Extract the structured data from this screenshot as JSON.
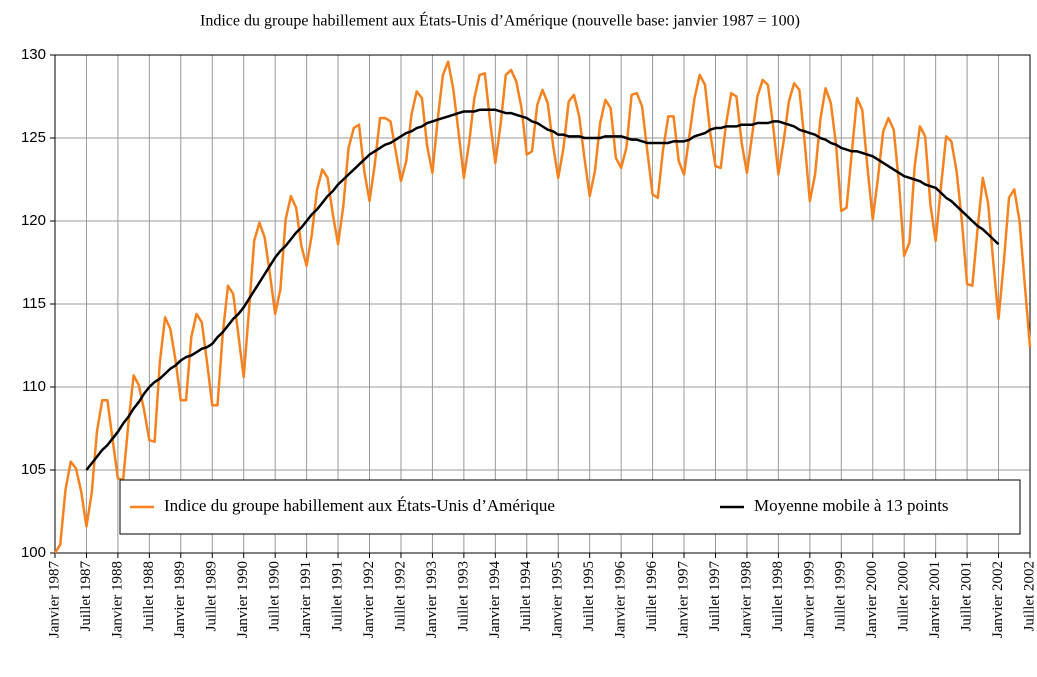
{
  "chart_data": {
    "type": "line",
    "title": "Indice du groupe habillement aux États-Unis d’Amérique (nouvelle base: janvier 1987 = 100)",
    "categories": [
      "Janvier 1987",
      null,
      null,
      null,
      null,
      null,
      "Juillet 1987",
      null,
      null,
      null,
      null,
      null,
      "Janvier 1988",
      null,
      null,
      null,
      null,
      null,
      "Juillet 1988",
      null,
      null,
      null,
      null,
      null,
      "Janvier 1989",
      null,
      null,
      null,
      null,
      null,
      "Juillet 1989",
      null,
      null,
      null,
      null,
      null,
      "Janvier 1990",
      null,
      null,
      null,
      null,
      null,
      "Juillet 1990",
      null,
      null,
      null,
      null,
      null,
      "Janvier 1991",
      null,
      null,
      null,
      null,
      null,
      "Juillet 1991",
      null,
      null,
      null,
      null,
      null,
      "Janvier 1992",
      null,
      null,
      null,
      null,
      null,
      "Juillet 1992",
      null,
      null,
      null,
      null,
      null,
      "Janvier 1993",
      null,
      null,
      null,
      null,
      null,
      "Juillet 1993",
      null,
      null,
      null,
      null,
      null,
      "Janvier 1994",
      null,
      null,
      null,
      null,
      null,
      "Juillet 1994",
      null,
      null,
      null,
      null,
      null,
      "Janvier 1995",
      null,
      null,
      null,
      null,
      null,
      "Juillet 1995",
      null,
      null,
      null,
      null,
      null,
      "Janvier 1996",
      null,
      null,
      null,
      null,
      null,
      "Juillet 1996",
      null,
      null,
      null,
      null,
      null,
      "Janvier 1997",
      null,
      null,
      null,
      null,
      null,
      "Juillet 1997",
      null,
      null,
      null,
      null,
      null,
      "Janvier 1998",
      null,
      null,
      null,
      null,
      null,
      "Juillet 1998",
      null,
      null,
      null,
      null,
      null,
      "Janvier 1999",
      null,
      null,
      null,
      null,
      null,
      "Juillet 1999",
      null,
      null,
      null,
      null,
      null,
      "Janvier 2000",
      null,
      null,
      null,
      null,
      null,
      "Juillet 2000",
      null,
      null,
      null,
      null,
      null,
      "Janvier 2001",
      null,
      null,
      null,
      null,
      null,
      "Juillet 2001",
      null,
      null,
      null,
      null,
      null,
      "Janvier 2002",
      null,
      null,
      null,
      null,
      null,
      "Juillet 2002"
    ],
    "series": [
      {
        "name": "Indice du groupe habillement aux États-Unis d’Amérique",
        "color": "#f5821f",
        "values": [
          100.0,
          100.5,
          103.8,
          105.5,
          105.1,
          103.7,
          101.6,
          103.6,
          107.3,
          109.2,
          109.2,
          106.8,
          104.5,
          104.4,
          107.8,
          110.7,
          110.1,
          108.6,
          106.8,
          106.7,
          111.5,
          114.2,
          113.5,
          111.6,
          109.2,
          109.2,
          113.0,
          114.4,
          113.9,
          111.5,
          108.9,
          108.9,
          113.2,
          116.1,
          115.6,
          113.1,
          110.6,
          114.6,
          118.8,
          119.9,
          119.0,
          116.8,
          114.4,
          115.9,
          120.1,
          121.5,
          120.8,
          118.5,
          117.3,
          119.2,
          121.9,
          123.1,
          122.6,
          120.4,
          118.6,
          120.9,
          124.4,
          125.6,
          125.8,
          123.0,
          121.2,
          123.4,
          126.2,
          126.2,
          126.0,
          124.2,
          122.4,
          123.6,
          126.4,
          127.8,
          127.4,
          124.5,
          122.9,
          126.1,
          128.8,
          129.6,
          127.9,
          125.3,
          122.6,
          124.7,
          127.4,
          128.8,
          128.9,
          126.0,
          123.5,
          125.8,
          128.8,
          129.1,
          128.4,
          126.8,
          124.0,
          124.2,
          127.0,
          127.9,
          127.1,
          124.6,
          122.6,
          124.4,
          127.2,
          127.6,
          126.3,
          123.8,
          121.5,
          123.0,
          125.9,
          127.3,
          126.8,
          123.8,
          123.2,
          124.4,
          127.6,
          127.7,
          126.9,
          124.2,
          121.6,
          121.4,
          124.3,
          126.3,
          126.3,
          123.6,
          122.8,
          125.1,
          127.4,
          128.8,
          128.2,
          125.3,
          123.3,
          123.2,
          125.8,
          127.7,
          127.5,
          124.7,
          122.9,
          125.2,
          127.5,
          128.5,
          128.2,
          125.7,
          122.8,
          124.8,
          127.2,
          128.3,
          127.9,
          124.8,
          121.2,
          122.8,
          126.1,
          128.0,
          127.1,
          124.6,
          120.6,
          120.8,
          124.1,
          127.4,
          126.7,
          123.2,
          120.1,
          122.6,
          125.4,
          126.2,
          125.5,
          122.3,
          117.9,
          118.7,
          123.3,
          125.7,
          125.1,
          121.0,
          118.8,
          122.0,
          125.1,
          124.8,
          123.0,
          120.0,
          116.2,
          116.1,
          119.5,
          122.6,
          121.1,
          117.5,
          114.1,
          117.5,
          121.4,
          121.9,
          120.0,
          116.2,
          112.4
        ]
      },
      {
        "name": "Moyenne mobile à 13 points",
        "color": "#000000",
        "values": [
          null,
          null,
          null,
          null,
          null,
          null,
          105.0,
          105.4,
          105.8,
          106.2,
          106.5,
          106.9,
          107.3,
          107.8,
          108.2,
          108.7,
          109.1,
          109.6,
          110.0,
          110.3,
          110.5,
          110.8,
          111.1,
          111.3,
          111.6,
          111.8,
          111.9,
          112.1,
          112.3,
          112.4,
          112.6,
          113.0,
          113.3,
          113.7,
          114.1,
          114.4,
          114.8,
          115.3,
          115.8,
          116.3,
          116.8,
          117.3,
          117.8,
          118.2,
          118.5,
          118.9,
          119.3,
          119.6,
          120.0,
          120.4,
          120.7,
          121.1,
          121.5,
          121.8,
          122.2,
          122.5,
          122.8,
          123.1,
          123.4,
          123.7,
          124.0,
          124.2,
          124.4,
          124.6,
          124.7,
          124.9,
          125.1,
          125.3,
          125.4,
          125.6,
          125.7,
          125.9,
          126.0,
          126.1,
          126.2,
          126.3,
          126.4,
          126.5,
          126.6,
          126.6,
          126.6,
          126.7,
          126.7,
          126.7,
          126.7,
          126.6,
          126.5,
          126.5,
          126.4,
          126.3,
          126.2,
          126.0,
          125.9,
          125.7,
          125.5,
          125.4,
          125.2,
          125.2,
          125.1,
          125.1,
          125.1,
          125.0,
          125.0,
          125.0,
          125.0,
          125.1,
          125.1,
          125.1,
          125.1,
          125.0,
          124.9,
          124.9,
          124.8,
          124.7,
          124.7,
          124.7,
          124.7,
          124.7,
          124.8,
          124.8,
          124.8,
          124.9,
          125.1,
          125.2,
          125.3,
          125.5,
          125.6,
          125.6,
          125.7,
          125.7,
          125.7,
          125.8,
          125.8,
          125.8,
          125.9,
          125.9,
          125.9,
          126.0,
          126.0,
          125.9,
          125.8,
          125.7,
          125.5,
          125.4,
          125.3,
          125.2,
          125.0,
          124.9,
          124.7,
          124.6,
          124.4,
          124.3,
          124.2,
          124.2,
          124.1,
          124.0,
          123.9,
          123.7,
          123.5,
          123.3,
          123.1,
          122.9,
          122.7,
          122.6,
          122.5,
          122.4,
          122.2,
          122.1,
          122.0,
          121.7,
          121.4,
          121.2,
          120.9,
          120.6,
          120.3,
          120.0,
          119.7,
          119.5,
          119.2,
          118.9,
          118.6,
          null,
          null,
          null,
          null,
          null,
          null
        ]
      }
    ],
    "ylim": [
      100,
      130
    ],
    "yticks": [
      100,
      105,
      110,
      115,
      120,
      125,
      130
    ],
    "grid": true,
    "legend": "bottom"
  }
}
